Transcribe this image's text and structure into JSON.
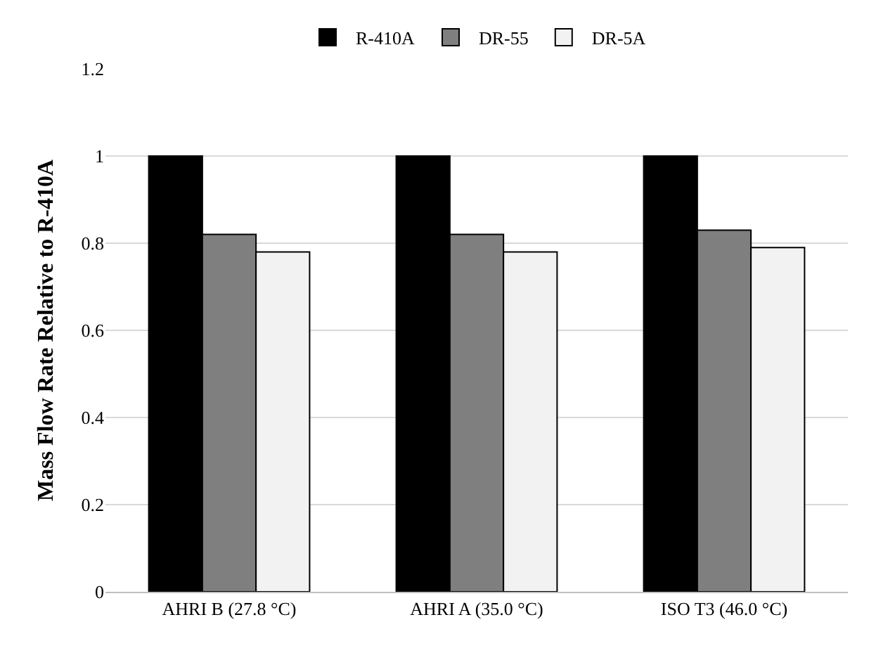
{
  "chart_data": {
    "type": "bar",
    "ylabel": "Mass Flow Rate Relative to R-410A",
    "categories": [
      "AHRI B (27.8 °C)",
      "AHRI A (35.0 °C)",
      "ISO T3 (46.0 °C)"
    ],
    "series": [
      {
        "name": "R-410A",
        "color": "#000000",
        "values": [
          1,
          1,
          1
        ]
      },
      {
        "name": "DR-55",
        "color": "#7f7f7f",
        "values": [
          0.82,
          0.82,
          0.83
        ]
      },
      {
        "name": "DR-5A",
        "color": "#f2f2f2",
        "values": [
          0.78,
          0.78,
          0.79
        ]
      }
    ],
    "ylim": [
      0,
      1.2
    ],
    "yticks": [
      0,
      0.2,
      0.4,
      0.6,
      0.8,
      1,
      1.2
    ],
    "grid": "y",
    "legend": "top"
  }
}
